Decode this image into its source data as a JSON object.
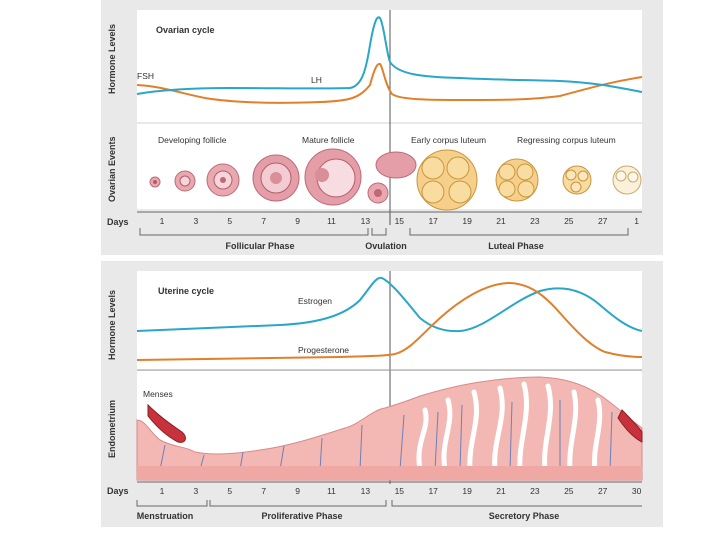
{
  "ovarian": {
    "title": "Ovarian cycle",
    "y_label_hormone": "Hormone Levels",
    "y_label_events": "Ovarian Events",
    "fsh_label": "FSH",
    "lh_label": "LH",
    "events": [
      "Developing follicle",
      "Mature follicle",
      "Early corpus luteum",
      "Regressing corpus luteum"
    ],
    "days_label": "Days",
    "days": [
      "1",
      "3",
      "5",
      "7",
      "9",
      "11",
      "13",
      "15",
      "17",
      "19",
      "21",
      "23",
      "25",
      "27",
      "1"
    ],
    "phases": [
      "Follicular Phase",
      "Ovulation",
      "Luteal Phase"
    ]
  },
  "uterine": {
    "title": "Uterine cycle",
    "y_label_hormone": "Hormone Levels",
    "y_label_endometrium": "Endometrium",
    "estrogen_label": "Estrogen",
    "progesterone_label": "Progesterone",
    "menses_label": "Menses",
    "days_label": "Days",
    "days": [
      "1",
      "3",
      "5",
      "7",
      "9",
      "11",
      "13",
      "15",
      "17",
      "19",
      "21",
      "23",
      "25",
      "27",
      "30"
    ],
    "phases": [
      "Menstruation",
      "Proliferative Phase",
      "Secretory Phase"
    ]
  },
  "colors": {
    "fsh": "#e0802a",
    "lh": "#2aa6c9",
    "estrogen": "#2aa6c9",
    "progesterone": "#e0802a",
    "follicle": "#d98e98",
    "corpus_luteum": "#f3c874",
    "endometrium": "#f3b8b4",
    "menses": "#c8323c"
  }
}
